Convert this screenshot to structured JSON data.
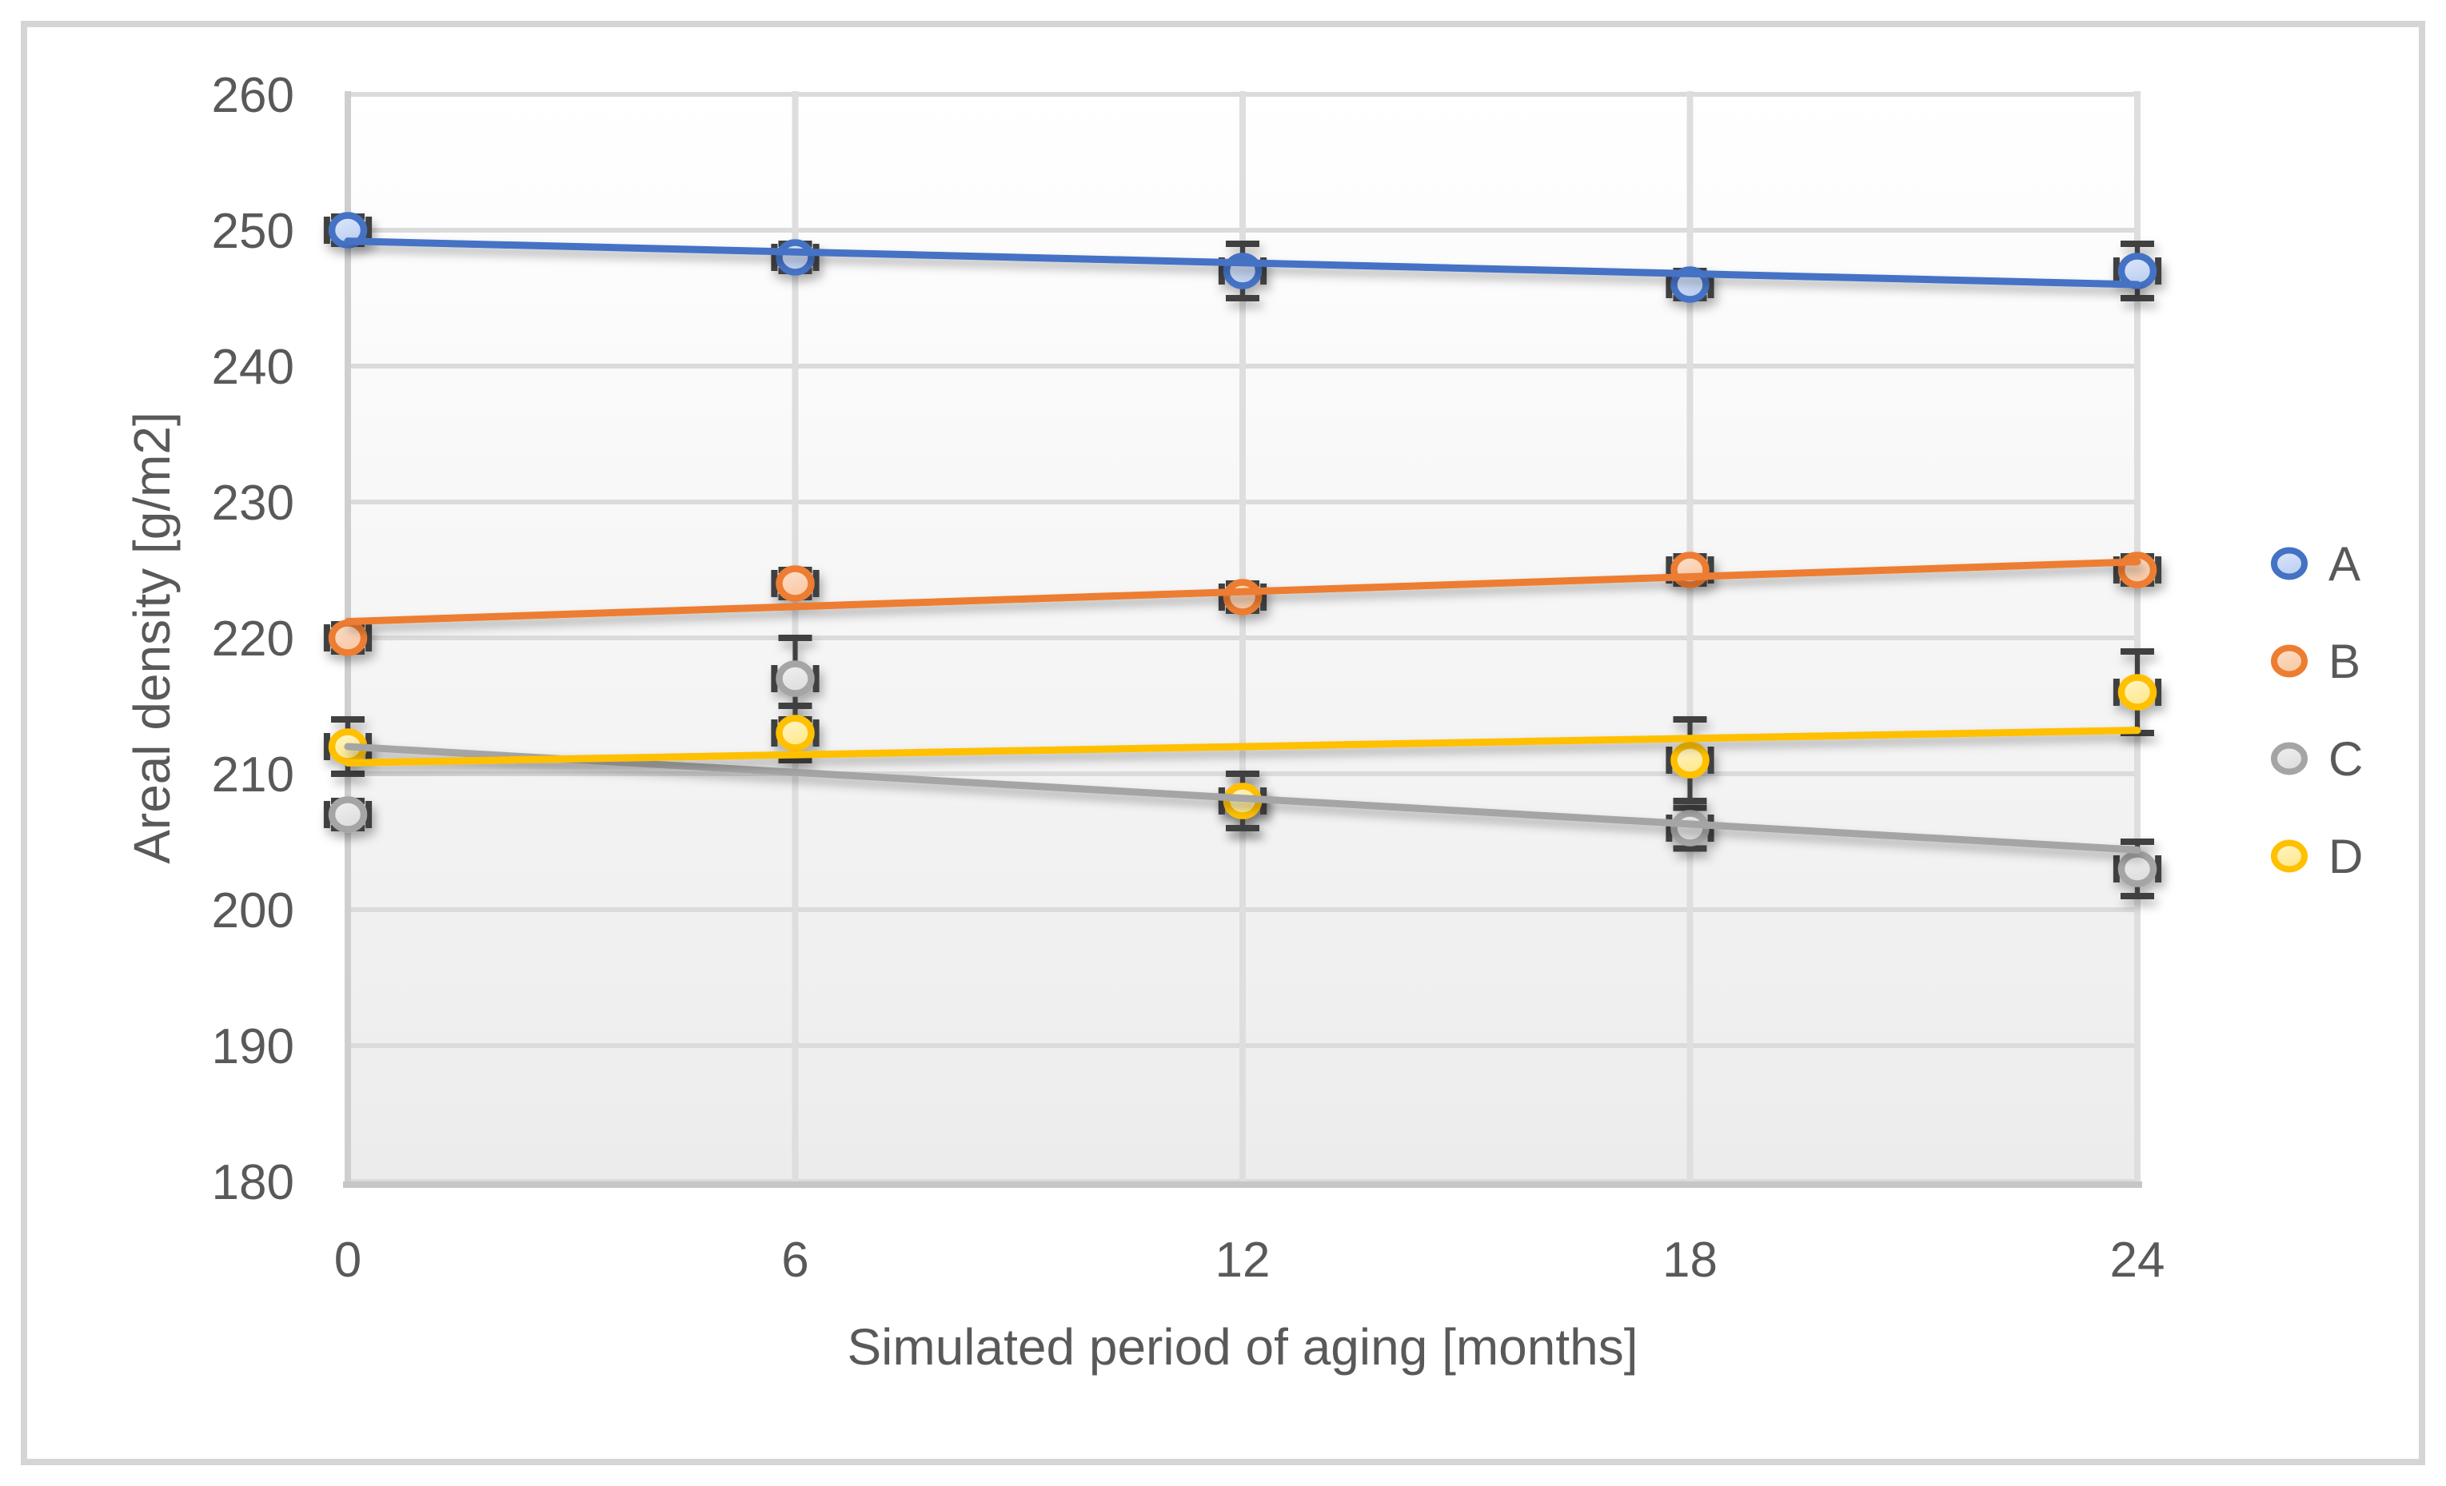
{
  "chart_data": {
    "type": "scatter",
    "title": "",
    "xlabel": "Simulated period of aging [months]",
    "ylabel": "Areal density [g/m2]",
    "x": [
      0,
      6,
      12,
      18,
      24
    ],
    "x_ticks": [
      "0",
      "6",
      "12",
      "18",
      "24"
    ],
    "y_ticks": [
      "180",
      "190",
      "200",
      "210",
      "220",
      "230",
      "240",
      "250",
      "260"
    ],
    "xlim": [
      0,
      24
    ],
    "ylim": [
      180,
      260
    ],
    "grid": true,
    "legend_position": "right",
    "series": [
      {
        "name": "A",
        "color": "#4472C4",
        "fill_light": "#DEE8FB",
        "fill_dark": "#BDD0F2",
        "values": [
          250,
          248,
          247,
          246,
          247
        ],
        "y_err": [
          1,
          1,
          2,
          1,
          2
        ],
        "x_err": 0.28,
        "trend": {
          "intercept": 249.2,
          "slope": -0.1333
        }
      },
      {
        "name": "B",
        "color": "#ED7D31",
        "fill_light": "#FDE0CC",
        "fill_dark": "#F9C9A4",
        "values": [
          220,
          224,
          223,
          225,
          225
        ],
        "y_err": [
          1,
          1,
          1,
          1,
          1
        ],
        "x_err": 0.28,
        "trend": {
          "intercept": 221.2,
          "slope": 0.1833
        }
      },
      {
        "name": "C",
        "color": "#A5A5A5",
        "fill_light": "#F1F1F1",
        "fill_dark": "#DEDEDE",
        "values": [
          207,
          217,
          208,
          206,
          203
        ],
        "y_err": [
          1,
          3,
          2,
          1.5,
          2
        ],
        "x_err": 0.28,
        "trend": {
          "intercept": 212.0,
          "slope": -0.3167
        }
      },
      {
        "name": "D",
        "color": "#FFC000",
        "fill_light": "#FFF6CC",
        "fill_dark": "#FFE88C",
        "values": [
          212,
          213,
          208,
          211,
          216
        ],
        "y_err": [
          2,
          2,
          2,
          3,
          3
        ],
        "x_err": 0.28,
        "trend": {
          "intercept": 210.8,
          "slope": 0.1
        }
      }
    ],
    "colors": {
      "error_bar": "#3F3F3F",
      "text": "#595959",
      "h_gridline": "#DBDBDB",
      "v_gridline": "#DEDEDE",
      "axis_line": "#C9C9C9",
      "plot_bg_top": "#FFFFFF",
      "plot_bg_bottom": "#ECECEC",
      "frame_border": "#D5D5D5"
    }
  }
}
